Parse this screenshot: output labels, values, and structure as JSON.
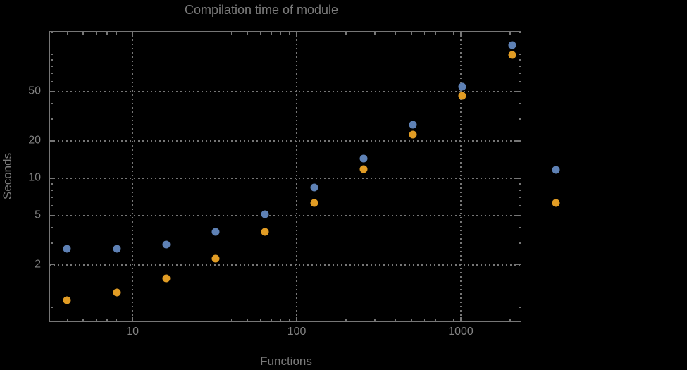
{
  "colors": {
    "background": "#000000",
    "text": "#7b7b7b",
    "tick_label_text": "#828282",
    "frame_and_grid": "#767676",
    "series1": "#5E81B5",
    "series2": "#E19C24"
  },
  "chart_data": {
    "type": "scatter",
    "title": "Compilation time of module",
    "xlabel": "Functions",
    "ylabel": "Seconds",
    "xscale": "log",
    "yscale": "log",
    "xlim": [
      3.11,
      2340
    ],
    "ylim": [
      0.69,
      154
    ],
    "grid": "dotted lines at major ticks",
    "legend_position": "right of plot, markers only (no visible label text)",
    "x": [
      4,
      8,
      16,
      32,
      64,
      128,
      256,
      512,
      1024,
      2048
    ],
    "series": [
      {
        "name": "series-1-blue",
        "color": "#5E81B5",
        "values": [
          2.7,
          2.7,
          2.9,
          3.7,
          5.1,
          8.4,
          14.4,
          27,
          55,
          118
        ]
      },
      {
        "name": "series-2-orange",
        "color": "#E19C24",
        "values": [
          1.03,
          1.2,
          1.55,
          2.25,
          3.7,
          6.3,
          11.9,
          22.5,
          46,
          99
        ]
      }
    ],
    "x_axis": {
      "major_ticks": [
        10,
        100,
        1000
      ],
      "major_labels": [
        "10",
        "100",
        "1000"
      ],
      "minor_ticks": [
        4,
        5,
        6,
        7,
        8,
        9,
        20,
        30,
        40,
        50,
        60,
        70,
        80,
        90,
        200,
        300,
        400,
        500,
        600,
        700,
        800,
        900,
        2000
      ]
    },
    "y_axis": {
      "major_ticks": [
        2,
        5,
        10,
        20,
        50
      ],
      "major_labels": [
        "2",
        "5",
        "10",
        "20",
        "50"
      ],
      "minor_ticks": [
        0.7,
        0.8,
        0.9,
        1,
        3,
        4,
        6,
        7,
        8,
        9,
        30,
        40,
        60,
        70,
        80,
        90,
        100,
        150
      ]
    }
  },
  "legend": {
    "markers": [
      {
        "series": "series-1-blue",
        "color": "#5E81B5"
      },
      {
        "series": "series-2-orange",
        "color": "#E19C24"
      }
    ]
  }
}
